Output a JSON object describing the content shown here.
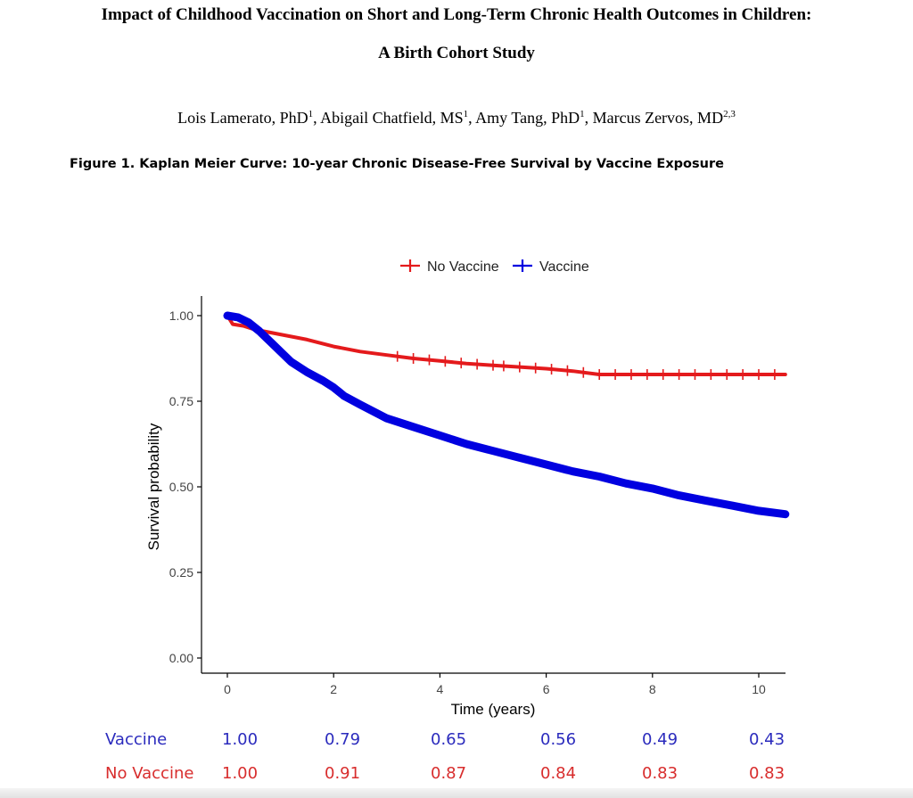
{
  "document": {
    "title_line1": "Impact of Childhood Vaccination on Short and Long-Term Chronic Health Outcomes in Children:",
    "title_line2": "A Birth Cohort Study",
    "authors": [
      {
        "name": "Lois Lamerato, PhD",
        "sup": "1"
      },
      {
        "name": "Abigail Chatfield, MS",
        "sup": "1"
      },
      {
        "name": "Amy Tang, PhD",
        "sup": "1"
      },
      {
        "name": "Marcus Zervos, MD",
        "sup": "2,3"
      }
    ],
    "figure_caption": "Figure 1. Kaplan Meier Curve: 10-year Chronic Disease-Free Survival by Vaccine Exposure"
  },
  "chart_data": {
    "type": "line",
    "title": "",
    "xlabel": "Time (years)",
    "ylabel": "Survival probability",
    "xlim": [
      -0.5,
      10.5
    ],
    "ylim": [
      0,
      1.05
    ],
    "x_ticks": [
      "0",
      "2",
      "4",
      "6",
      "8",
      "10"
    ],
    "y_ticks": [
      "0.00",
      "0.25",
      "0.50",
      "0.75",
      "1.00"
    ],
    "legend_position": "top",
    "grid": false,
    "series": [
      {
        "name": "No Vaccine",
        "color": "#e41a1c",
        "x": [
          0,
          0.1,
          0.3,
          0.5,
          1.0,
          1.5,
          2.0,
          2.5,
          3.0,
          3.5,
          4.0,
          4.5,
          5.0,
          5.5,
          6.0,
          6.5,
          7.0,
          7.5,
          8.0,
          8.5,
          9.0,
          9.5,
          10.0,
          10.5
        ],
        "y": [
          1.0,
          0.975,
          0.97,
          0.96,
          0.945,
          0.93,
          0.91,
          0.895,
          0.885,
          0.875,
          0.868,
          0.86,
          0.855,
          0.85,
          0.845,
          0.838,
          0.828,
          0.828,
          0.828,
          0.828,
          0.828,
          0.828,
          0.828,
          0.828
        ]
      },
      {
        "name": "Vaccine",
        "color": "#0000e0",
        "x": [
          0,
          0.2,
          0.4,
          0.6,
          0.8,
          1.0,
          1.2,
          1.5,
          1.8,
          2.0,
          2.2,
          2.5,
          3.0,
          3.5,
          4.0,
          4.5,
          5.0,
          5.5,
          6.0,
          6.5,
          7.0,
          7.5,
          8.0,
          8.5,
          9.0,
          9.5,
          10.0,
          10.5
        ],
        "y": [
          1.0,
          0.995,
          0.98,
          0.955,
          0.925,
          0.895,
          0.865,
          0.835,
          0.81,
          0.79,
          0.765,
          0.74,
          0.7,
          0.675,
          0.65,
          0.625,
          0.605,
          0.585,
          0.565,
          0.545,
          0.53,
          0.51,
          0.495,
          0.475,
          0.46,
          0.445,
          0.43,
          0.42
        ]
      }
    ],
    "censor_marks_no_vaccine": [
      3.2,
      3.5,
      3.8,
      4.1,
      4.4,
      4.7,
      5.0,
      5.2,
      5.5,
      5.8,
      6.1,
      6.4,
      6.7,
      7.0,
      7.3,
      7.6,
      7.9,
      8.2,
      8.5,
      8.8,
      9.1,
      9.4,
      9.7,
      10.0,
      10.3
    ]
  },
  "risk_table": {
    "rows": [
      {
        "label": "Vaccine",
        "values": [
          "1.00",
          "0.79",
          "0.65",
          "0.56",
          "0.49",
          "0.43"
        ]
      },
      {
        "label": "No Vaccine",
        "values": [
          "1.00",
          "0.91",
          "0.87",
          "0.84",
          "0.83",
          "0.83"
        ]
      }
    ]
  }
}
